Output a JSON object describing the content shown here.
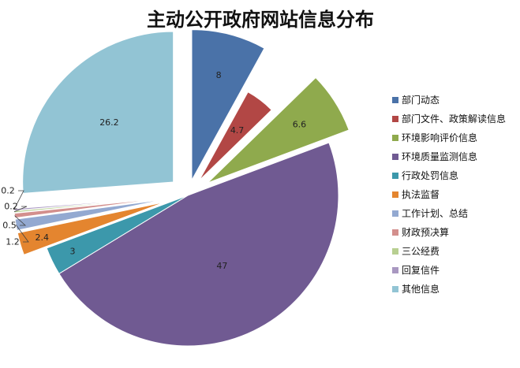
{
  "chart_data": {
    "type": "pie",
    "title": "主动公开政府网站信息分布",
    "categories": [
      "部门动态",
      "部门文件、政策解读信息",
      "环境影响评价信息",
      "环境质量监测信息",
      "行政处罚信息",
      "执法监督",
      "工作计划、总结",
      "财政预决算",
      "三公经费",
      "回复信件",
      "其他信息"
    ],
    "values": [
      8,
      4.7,
      6.6,
      47,
      3,
      2.4,
      1.2,
      0.5,
      0.2,
      0.2,
      26.2
    ],
    "data_labels": [
      "8",
      "4.7",
      "6.6",
      "47",
      "3",
      "2.4",
      "1.2",
      "0.5",
      "0.2",
      "0.2",
      "26.2"
    ],
    "colors": [
      "#4a72a8",
      "#b24745",
      "#8faa4d",
      "#705a92",
      "#3c98ab",
      "#e4852f",
      "#93a9d1",
      "#d38f8d",
      "#b8cf91",
      "#a998c1",
      "#92c4d4"
    ],
    "exploded": true,
    "legend_position": "right"
  }
}
